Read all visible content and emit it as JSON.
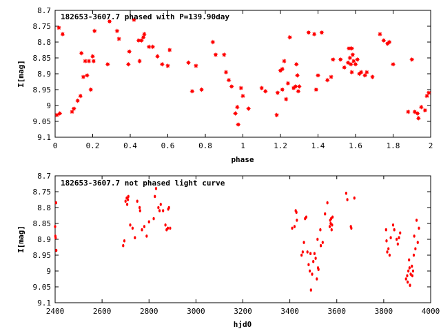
{
  "chart_data": [
    {
      "type": "scatter",
      "title": "182653-3607.7 phased with P=139.90day",
      "xlabel": "phase",
      "ylabel": "I[mag]",
      "xlim": [
        0,
        2
      ],
      "ylim": [
        9.1,
        8.7
      ],
      "y_inverted": true,
      "grid": false,
      "legend": "none",
      "marker": "filled-star",
      "color": "#ff0000",
      "xticks": [
        "0",
        "0.2",
        "0.4",
        "0.6",
        "0.8",
        "1",
        "1.2",
        "1.4",
        "1.6",
        "1.8",
        "2"
      ],
      "yticks": [
        "8.7",
        "8.75",
        "8.8",
        "8.85",
        "8.9",
        "8.95",
        "9",
        "9.05",
        "9.1"
      ],
      "points": [
        [
          0.01,
          9.03
        ],
        [
          0.02,
          8.755
        ],
        [
          0.025,
          9.025
        ],
        [
          0.04,
          8.775
        ],
        [
          0.09,
          9.02
        ],
        [
          0.1,
          9.01
        ],
        [
          0.12,
          8.985
        ],
        [
          0.135,
          8.97
        ],
        [
          0.14,
          8.835
        ],
        [
          0.15,
          8.91
        ],
        [
          0.16,
          8.86
        ],
        [
          0.17,
          8.905
        ],
        [
          0.18,
          8.86
        ],
        [
          0.19,
          8.95
        ],
        [
          0.2,
          8.845
        ],
        [
          0.205,
          8.86
        ],
        [
          0.21,
          8.765
        ],
        [
          0.28,
          8.87
        ],
        [
          0.29,
          8.735
        ],
        [
          0.33,
          8.765
        ],
        [
          0.34,
          8.79
        ],
        [
          0.39,
          8.87
        ],
        [
          0.395,
          8.83
        ],
        [
          0.42,
          8.73
        ],
        [
          0.445,
          8.795
        ],
        [
          0.45,
          8.86
        ],
        [
          0.46,
          8.795
        ],
        [
          0.47,
          8.785
        ],
        [
          0.475,
          8.775
        ],
        [
          0.5,
          8.815
        ],
        [
          0.52,
          8.815
        ],
        [
          0.545,
          8.845
        ],
        [
          0.57,
          8.87
        ],
        [
          0.6,
          8.875
        ],
        [
          0.61,
          8.825
        ],
        [
          0.71,
          8.865
        ],
        [
          0.73,
          8.955
        ],
        [
          0.75,
          8.875
        ],
        [
          0.78,
          8.95
        ],
        [
          0.84,
          8.8
        ],
        [
          0.855,
          8.84
        ],
        [
          0.9,
          8.84
        ],
        [
          0.91,
          8.895
        ],
        [
          0.925,
          8.92
        ],
        [
          0.94,
          8.94
        ],
        [
          0.96,
          9.025
        ],
        [
          0.97,
          9.005
        ],
        [
          0.975,
          9.06
        ],
        [
          0.99,
          8.945
        ],
        [
          1.0,
          8.97
        ],
        [
          1.03,
          9.01
        ],
        [
          1.1,
          8.945
        ],
        [
          1.12,
          8.955
        ],
        [
          1.18,
          9.03
        ],
        [
          1.185,
          8.96
        ],
        [
          1.2,
          8.89
        ],
        [
          1.21,
          8.95
        ],
        [
          1.21,
          8.885
        ],
        [
          1.22,
          8.86
        ],
        [
          1.23,
          8.98
        ],
        [
          1.24,
          8.93
        ],
        [
          1.25,
          8.785
        ],
        [
          1.27,
          8.945
        ],
        [
          1.28,
          8.94
        ],
        [
          1.285,
          8.87
        ],
        [
          1.29,
          8.905
        ],
        [
          1.295,
          8.955
        ],
        [
          1.3,
          8.94
        ],
        [
          1.35,
          8.77
        ],
        [
          1.38,
          8.775
        ],
        [
          1.39,
          8.95
        ],
        [
          1.4,
          8.905
        ],
        [
          1.42,
          8.77
        ],
        [
          1.45,
          8.92
        ],
        [
          1.47,
          8.91
        ],
        [
          1.48,
          8.855
        ],
        [
          1.52,
          8.855
        ],
        [
          1.54,
          8.88
        ],
        [
          1.56,
          8.865
        ],
        [
          1.565,
          8.82
        ],
        [
          1.57,
          8.85
        ],
        [
          1.575,
          8.87
        ],
        [
          1.58,
          8.82
        ],
        [
          1.58,
          8.895
        ],
        [
          1.585,
          8.84
        ],
        [
          1.59,
          8.86
        ],
        [
          1.6,
          8.87
        ],
        [
          1.61,
          8.855
        ],
        [
          1.62,
          8.9
        ],
        [
          1.63,
          8.895
        ],
        [
          1.65,
          8.905
        ],
        [
          1.66,
          8.895
        ],
        [
          1.69,
          8.91
        ],
        [
          1.73,
          8.775
        ],
        [
          1.75,
          8.795
        ],
        [
          1.77,
          8.805
        ],
        [
          1.78,
          8.8
        ],
        [
          1.8,
          8.87
        ],
        [
          1.88,
          9.02
        ],
        [
          1.9,
          8.855
        ],
        [
          1.915,
          9.02
        ],
        [
          1.93,
          9.025
        ],
        [
          1.935,
          9.04
        ],
        [
          1.95,
          9.005
        ],
        [
          1.97,
          9.015
        ],
        [
          1.98,
          8.97
        ],
        [
          1.99,
          8.96
        ]
      ]
    },
    {
      "type": "scatter",
      "title": "182653-3607.7 not phased light curve",
      "xlabel": "hjd0",
      "ylabel": "I[mag]",
      "xlim": [
        2400,
        4000
      ],
      "ylim": [
        9.1,
        8.7
      ],
      "y_inverted": true,
      "grid": false,
      "legend": "none",
      "marker": "filled-dot",
      "color": "#ff0000",
      "xticks": [
        "2400",
        "2600",
        "2800",
        "3000",
        "3200",
        "3400",
        "3600",
        "3800",
        "4000"
      ],
      "yticks": [
        "8.7",
        "8.75",
        "8.8",
        "8.85",
        "8.9",
        "8.95",
        "9",
        "9.05",
        "9.1"
      ],
      "points": [
        [
          2400,
          8.86
        ],
        [
          2401,
          8.89
        ],
        [
          2402,
          8.895
        ],
        [
          2404,
          8.785
        ],
        [
          2405,
          8.935
        ],
        [
          2690,
          8.92
        ],
        [
          2695,
          8.905
        ],
        [
          2700,
          8.78
        ],
        [
          2705,
          8.77
        ],
        [
          2707,
          8.79
        ],
        [
          2710,
          8.775
        ],
        [
          2712,
          8.765
        ],
        [
          2720,
          8.855
        ],
        [
          2730,
          8.865
        ],
        [
          2740,
          8.895
        ],
        [
          2750,
          8.78
        ],
        [
          2760,
          8.8
        ],
        [
          2762,
          8.81
        ],
        [
          2770,
          8.87
        ],
        [
          2780,
          8.86
        ],
        [
          2790,
          8.89
        ],
        [
          2800,
          8.845
        ],
        [
          2820,
          8.835
        ],
        [
          2825,
          8.765
        ],
        [
          2830,
          8.74
        ],
        [
          2840,
          8.8
        ],
        [
          2845,
          8.81
        ],
        [
          2850,
          8.79
        ],
        [
          2860,
          8.81
        ],
        [
          2870,
          8.855
        ],
        [
          2875,
          8.87
        ],
        [
          2880,
          8.865
        ],
        [
          2882,
          8.805
        ],
        [
          2885,
          8.8
        ],
        [
          2890,
          8.865
        ],
        [
          3410,
          8.865
        ],
        [
          3420,
          8.86
        ],
        [
          3425,
          8.81
        ],
        [
          3428,
          8.815
        ],
        [
          3430,
          8.84
        ],
        [
          3450,
          8.95
        ],
        [
          3455,
          8.94
        ],
        [
          3460,
          8.91
        ],
        [
          3465,
          8.835
        ],
        [
          3470,
          8.83
        ],
        [
          3475,
          8.94
        ],
        [
          3480,
          8.98
        ],
        [
          3485,
          9.0
        ],
        [
          3488,
          8.945
        ],
        [
          3490,
          9.06
        ],
        [
          3495,
          9.01
        ],
        [
          3500,
          8.97
        ],
        [
          3505,
          8.945
        ],
        [
          3510,
          8.96
        ],
        [
          3515,
          9.025
        ],
        [
          3518,
          8.9
        ],
        [
          3520,
          8.99
        ],
        [
          3522,
          8.995
        ],
        [
          3530,
          8.87
        ],
        [
          3532,
          8.92
        ],
        [
          3540,
          8.91
        ],
        [
          3550,
          8.82
        ],
        [
          3560,
          8.785
        ],
        [
          3570,
          8.86
        ],
        [
          3572,
          8.84
        ],
        [
          3574,
          8.85
        ],
        [
          3576,
          8.835
        ],
        [
          3578,
          8.87
        ],
        [
          3580,
          8.855
        ],
        [
          3582,
          8.83
        ],
        [
          3640,
          8.755
        ],
        [
          3645,
          8.775
        ],
        [
          3660,
          8.86
        ],
        [
          3662,
          8.865
        ],
        [
          3675,
          8.77
        ],
        [
          3810,
          8.87
        ],
        [
          3812,
          8.905
        ],
        [
          3815,
          8.94
        ],
        [
          3820,
          8.93
        ],
        [
          3825,
          8.95
        ],
        [
          3830,
          8.895
        ],
        [
          3840,
          8.855
        ],
        [
          3845,
          8.87
        ],
        [
          3855,
          8.9
        ],
        [
          3860,
          8.915
        ],
        [
          3865,
          8.895
        ],
        [
          3870,
          8.88
        ],
        [
          3895,
          9.025
        ],
        [
          3900,
          9.015
        ],
        [
          3902,
          9.035
        ],
        [
          3905,
          9.0
        ],
        [
          3908,
          8.965
        ],
        [
          3910,
          8.99
        ],
        [
          3912,
          9.045
        ],
        [
          3915,
          9.01
        ],
        [
          3920,
          8.985
        ],
        [
          3922,
          9.015
        ],
        [
          3925,
          9.0
        ],
        [
          3928,
          8.95
        ],
        [
          3930,
          8.89
        ],
        [
          3935,
          8.93
        ],
        [
          3940,
          8.84
        ],
        [
          3945,
          8.91
        ],
        [
          3950,
          8.865
        ]
      ]
    }
  ]
}
